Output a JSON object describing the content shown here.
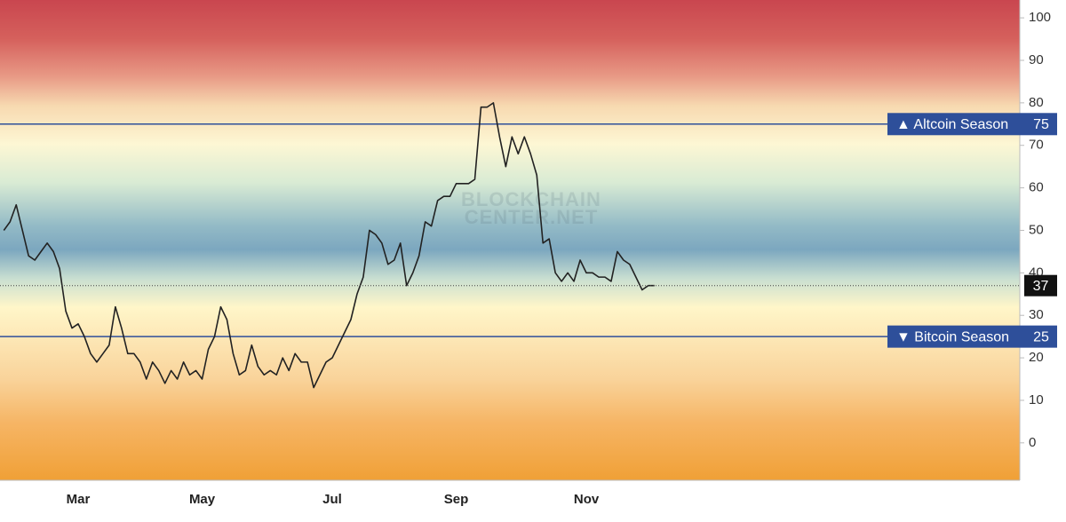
{
  "chart_data": {
    "type": "line",
    "watermark": [
      "BLOCKCHAIN",
      "CENTER.NET"
    ],
    "categories": [
      null,
      null,
      null,
      null,
      null,
      null,
      null,
      null,
      null,
      null,
      null,
      null,
      "Mar",
      null,
      null,
      null,
      null,
      null,
      null,
      null,
      null,
      null,
      null,
      null,
      null,
      null,
      null,
      null,
      null,
      null,
      null,
      null,
      "May",
      null,
      null,
      null,
      null,
      null,
      null,
      null,
      null,
      null,
      null,
      null,
      null,
      null,
      null,
      null,
      null,
      null,
      null,
      null,
      null,
      "Jul",
      null,
      null,
      null,
      null,
      null,
      null,
      null,
      null,
      null,
      null,
      null,
      null,
      null,
      null,
      null,
      null,
      null,
      null,
      null,
      "Sep",
      null,
      null,
      null,
      null,
      null,
      null,
      null,
      null,
      null,
      null,
      null,
      null,
      null,
      null,
      null,
      null,
      null,
      null,
      null,
      null,
      "Nov",
      null,
      null,
      null,
      null,
      null,
      null,
      null,
      null,
      null,
      null,
      null
    ],
    "series": [
      {
        "color": "#222222",
        "values": [
          50,
          52,
          56,
          50,
          44,
          43,
          45,
          47,
          45,
          41,
          31,
          27,
          28,
          25,
          21,
          19,
          21,
          23,
          32,
          27,
          21,
          21,
          19,
          15,
          19,
          17,
          14,
          17,
          15,
          19,
          16,
          17,
          15,
          22,
          25,
          32,
          29,
          21,
          16,
          17,
          23,
          18,
          16,
          17,
          16,
          20,
          17,
          21,
          19,
          19,
          13,
          16,
          19,
          20,
          23,
          26,
          29,
          35,
          39,
          50,
          49,
          47,
          42,
          43,
          47,
          37,
          40,
          44,
          52,
          51,
          57,
          58,
          58,
          61,
          61,
          61,
          62,
          79,
          79,
          80,
          72,
          65,
          72,
          68,
          72,
          68,
          63,
          47,
          48,
          40,
          38,
          40,
          38,
          43,
          40,
          40,
          39,
          39,
          38,
          45,
          43,
          42,
          39,
          36,
          37,
          37
        ]
      }
    ],
    "ylim": [
      -8.6,
      104.2
    ],
    "yticks": [
      0,
      10,
      20,
      30,
      40,
      50,
      60,
      70,
      80,
      90,
      100
    ],
    "annotations": [
      {
        "label": "▲ Altcoin Season",
        "value": 75,
        "color": "#2e4f9a"
      },
      {
        "label": "▼ Bitcoin Season",
        "value": 25,
        "color": "#2e4f9a"
      }
    ]
  }
}
